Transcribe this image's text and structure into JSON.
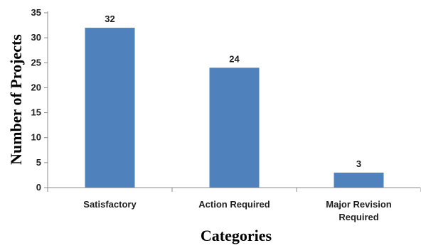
{
  "chart_data": {
    "type": "bar",
    "categories": [
      "Satisfactory",
      "Action Required",
      "Major Revision Required"
    ],
    "category_lines": [
      [
        "Satisfactory"
      ],
      [
        "Action Required"
      ],
      [
        "Major Revision",
        "Required"
      ]
    ],
    "values": [
      32,
      24,
      3
    ],
    "data_labels": [
      "32",
      "24",
      "3"
    ],
    "title": "",
    "xlabel": "Categories",
    "ylabel": "Number of Projects",
    "ylim": [
      0,
      35
    ],
    "yticks": [
      0,
      5,
      10,
      15,
      20,
      25,
      30,
      35
    ],
    "ytick_labels": [
      "0",
      "5",
      "10",
      "15",
      "20",
      "25",
      "30",
      "35"
    ],
    "grid": false,
    "legend": "none",
    "colors": {
      "bar": "#4f81bd",
      "axis": "#8c8c8c",
      "text": "#1f1f1f"
    }
  }
}
